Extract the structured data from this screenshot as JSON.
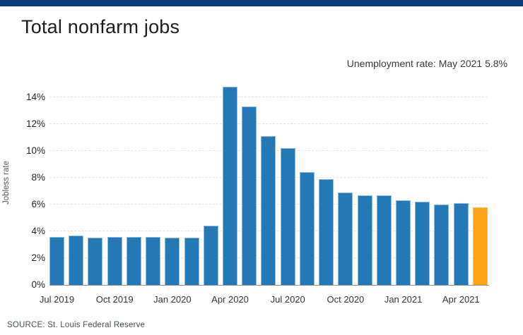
{
  "header": {
    "title": "Total nonfarm jobs"
  },
  "annotation": {
    "text": "Unemployment rate: May 2021 5.8%"
  },
  "footer": {
    "source": "SOURCE: St. Louis Federal Reserve"
  },
  "colors": {
    "top_accent": "#0c3b7a",
    "bar": "#2478b5",
    "highlight": "#fda414",
    "grid": "#e4e4e4",
    "axis": "#8f9499"
  },
  "chart_data": {
    "type": "bar",
    "title": "Total nonfarm jobs",
    "xlabel": "",
    "ylabel": "Jobless rate",
    "ylim": [
      0,
      15
    ],
    "yticks": [
      0,
      2,
      4,
      6,
      8,
      10,
      12,
      14
    ],
    "ytick_suffix": "%",
    "grid": "horizontal dashed, y-axis only",
    "legend_position": "none",
    "annotation": "Unemployment rate: May 2021 5.8%",
    "categories": [
      "Jul 2019",
      "Aug 2019",
      "Sep 2019",
      "Oct 2019",
      "Nov 2019",
      "Dec 2019",
      "Jan 2020",
      "Feb 2020",
      "Mar 2020",
      "Apr 2020",
      "May 2020",
      "Jun 2020",
      "Jul 2020",
      "Aug 2020",
      "Sep 2020",
      "Oct 2020",
      "Nov 2020",
      "Dec 2020",
      "Jan 2021",
      "Feb 2021",
      "Mar 2021",
      "Apr 2021",
      "May 2021"
    ],
    "values": [
      3.6,
      3.7,
      3.5,
      3.6,
      3.6,
      3.6,
      3.5,
      3.5,
      4.4,
      14.8,
      13.3,
      11.1,
      10.2,
      8.4,
      7.9,
      6.9,
      6.7,
      6.7,
      6.3,
      6.2,
      6.0,
      6.1,
      5.8
    ],
    "highlight_index": 22,
    "visible_xticks": [
      {
        "index": 0,
        "label": "Jul 2019"
      },
      {
        "index": 3,
        "label": "Oct 2019"
      },
      {
        "index": 6,
        "label": "Jan 2020"
      },
      {
        "index": 9,
        "label": "Apr 2020"
      },
      {
        "index": 12,
        "label": "Jul 2020"
      },
      {
        "index": 15,
        "label": "Oct 2020"
      },
      {
        "index": 18,
        "label": "Jan 2021"
      },
      {
        "index": 21,
        "label": "Apr 2021"
      }
    ]
  }
}
